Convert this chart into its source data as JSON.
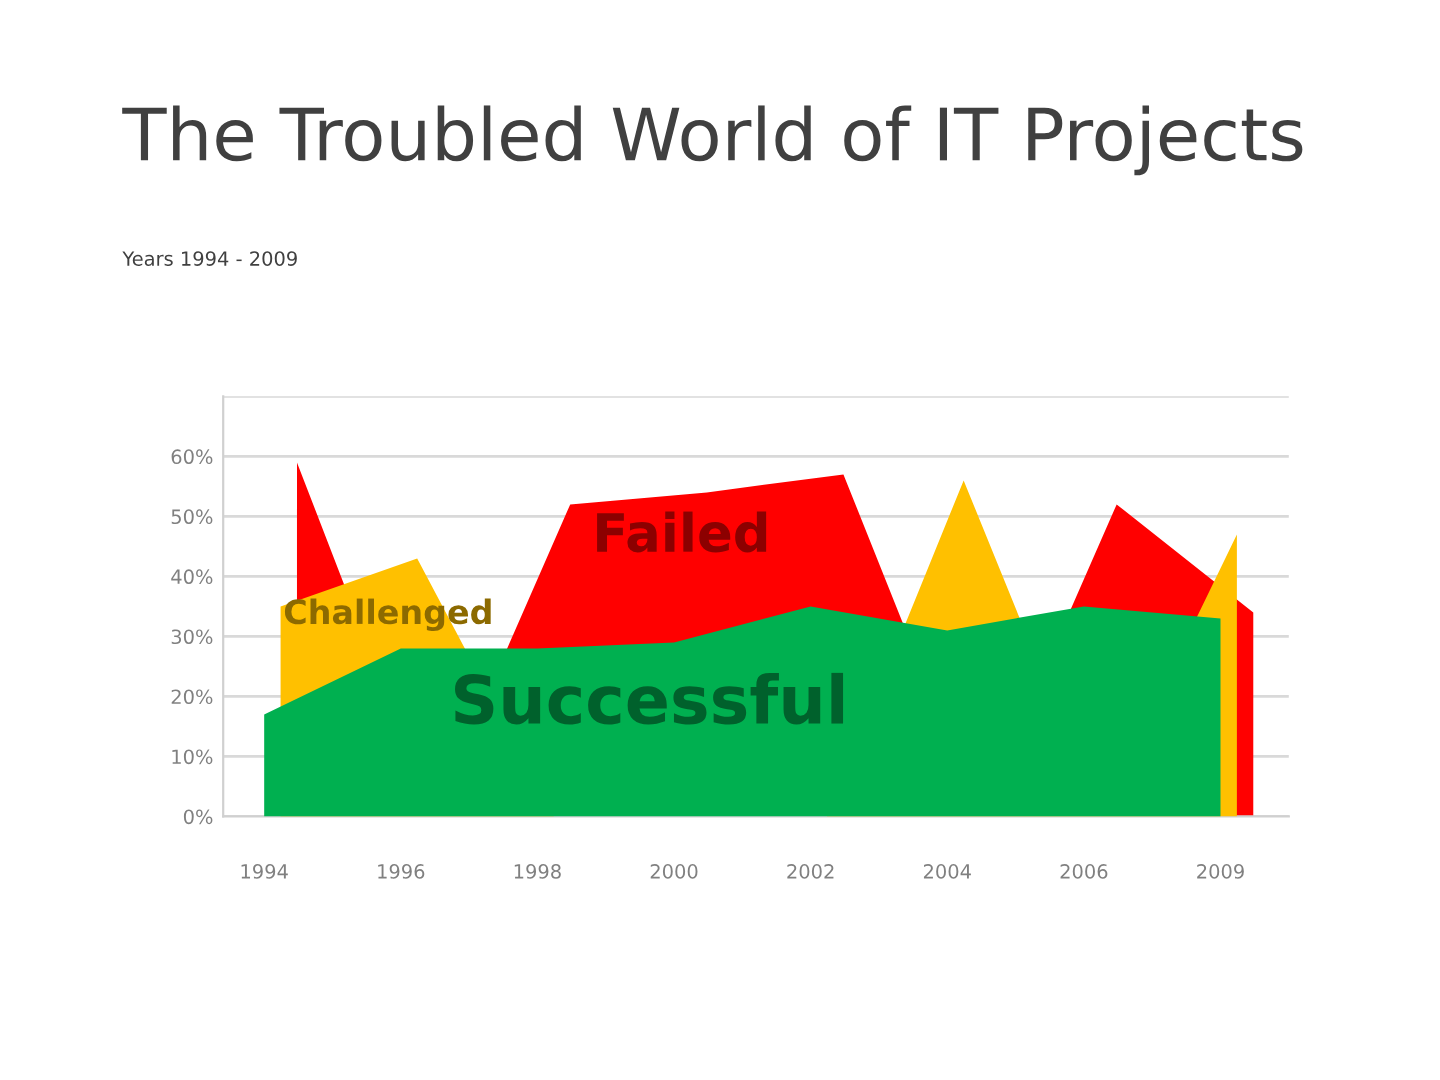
{
  "chart_data": {
    "type": "area",
    "title": "The Troubled World of IT Projects",
    "subtitle": "Years 1994 - 2009",
    "categories": [
      "1994",
      "1996",
      "1998",
      "2000",
      "2002",
      "2004",
      "2006",
      "2009"
    ],
    "series": [
      {
        "name": "Failed",
        "color": "#ff0000",
        "values": [
          59,
          null,
          52,
          54,
          57,
          null,
          52,
          34
        ]
      },
      {
        "name": "Challenged",
        "color": "#ffc000",
        "values": [
          35,
          43,
          null,
          null,
          null,
          56,
          null,
          47
        ]
      },
      {
        "name": "Successful",
        "color": "#00b050",
        "values": [
          17,
          28,
          28,
          29,
          35,
          31,
          35,
          33
        ]
      }
    ],
    "ylim": [
      0,
      70
    ],
    "yticks": [
      {
        "value": 0,
        "label": "0%"
      },
      {
        "value": 10,
        "label": "10%"
      },
      {
        "value": 20,
        "label": "20%"
      },
      {
        "value": 30,
        "label": "30%"
      },
      {
        "value": 40,
        "label": "40%"
      },
      {
        "value": 50,
        "label": "50%"
      },
      {
        "value": 60,
        "label": "60%"
      },
      {
        "value": 70,
        "label": null
      }
    ],
    "grid": "y"
  }
}
